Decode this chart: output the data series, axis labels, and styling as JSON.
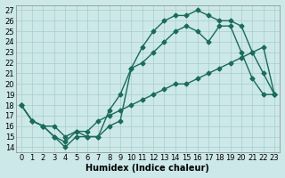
{
  "xlabel": "Humidex (Indice chaleur)",
  "ylabel": "",
  "background_color": "#cce8e8",
  "grid_color": "#aacccc",
  "line_color": "#1a6b5a",
  "xlim": [
    -0.5,
    23.5
  ],
  "ylim": [
    13.5,
    27.5
  ],
  "xticks": [
    0,
    1,
    2,
    3,
    4,
    5,
    6,
    7,
    8,
    9,
    10,
    11,
    12,
    13,
    14,
    15,
    16,
    17,
    18,
    19,
    20,
    21,
    22,
    23
  ],
  "yticks": [
    14,
    15,
    16,
    17,
    18,
    19,
    20,
    21,
    22,
    23,
    24,
    25,
    26,
    27
  ],
  "line1_x": [
    0,
    1,
    2,
    3,
    4,
    5,
    6,
    7,
    8,
    9,
    10,
    11,
    12,
    13,
    14,
    15,
    16,
    17,
    18,
    19,
    20,
    21,
    22,
    23
  ],
  "line1_y": [
    18,
    16.5,
    16,
    15,
    14,
    15,
    15,
    15,
    17.5,
    19,
    21.5,
    23.5,
    25,
    26,
    26.5,
    26.5,
    27,
    26.5,
    26,
    26,
    25.5,
    23,
    21,
    19
  ],
  "line2_x": [
    0,
    1,
    2,
    3,
    4,
    5,
    6,
    7,
    8,
    9,
    10,
    11,
    12,
    13,
    14,
    15,
    16,
    17,
    18,
    19,
    20,
    21,
    22,
    23
  ],
  "line2_y": [
    18,
    16.5,
    16,
    15,
    14.5,
    15.5,
    15,
    15,
    16,
    16.5,
    21.5,
    22,
    23,
    24,
    25,
    25.5,
    25,
    24,
    25.5,
    25.5,
    23,
    20.5,
    19,
    19
  ],
  "line3_x": [
    0,
    1,
    2,
    3,
    4,
    5,
    6,
    7,
    8,
    9,
    10,
    11,
    12,
    13,
    14,
    15,
    16,
    17,
    18,
    19,
    20,
    21,
    22,
    23
  ],
  "line3_y": [
    18,
    16.5,
    16,
    16,
    15,
    15.5,
    15.5,
    16.5,
    17,
    17.5,
    18,
    18.5,
    19,
    19.5,
    20,
    20,
    20.5,
    21,
    21.5,
    22,
    22.5,
    23,
    23.5,
    19
  ],
  "marker_size": 2.5,
  "line_width": 1.0,
  "font_size_label": 7,
  "font_size_tick": 6
}
